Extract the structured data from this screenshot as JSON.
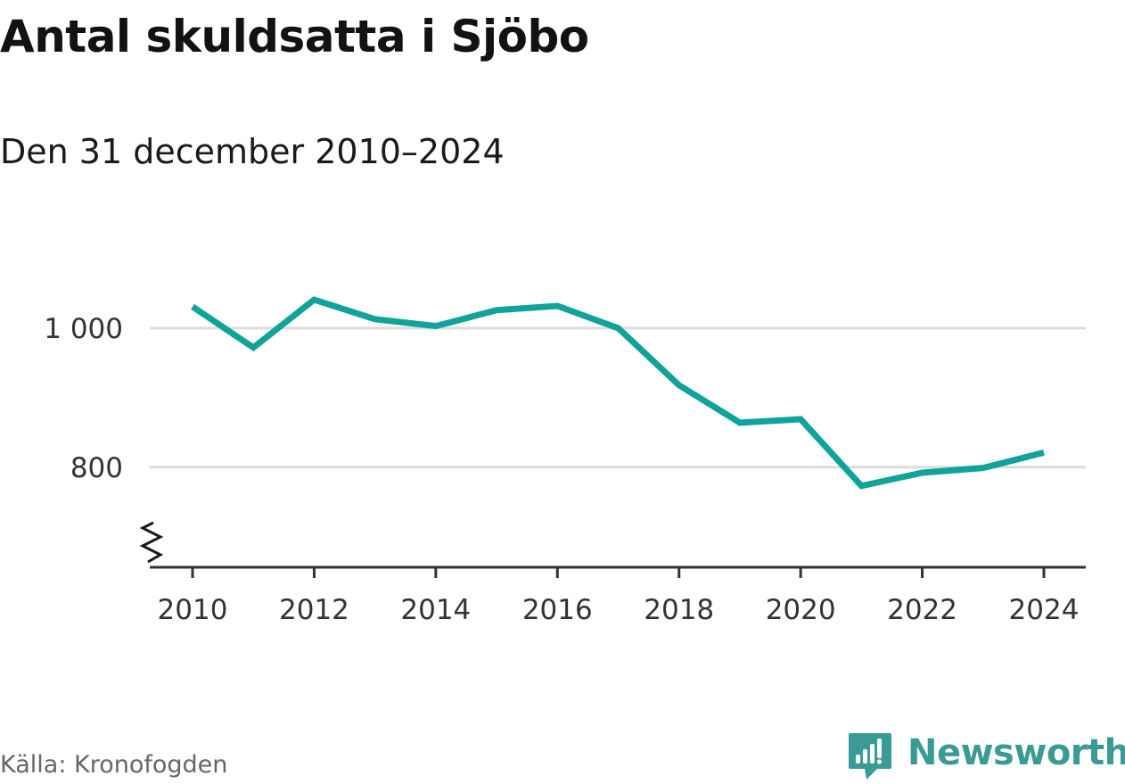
{
  "title": "Antal skuldsatta i Sjöbo",
  "subtitle": "Den 31 december 2010–2024",
  "source": "Källa: Kronofogden",
  "brand": {
    "name": "Newsworthy",
    "logo_icon": "bar-chart-speech-bubble-icon"
  },
  "colors": {
    "line": "#0fa39a",
    "grid": "#dddddd",
    "axis": "#333333",
    "brand": "#3a9b96"
  },
  "chart_data": {
    "type": "line",
    "x": [
      2010,
      2011,
      2012,
      2013,
      2014,
      2015,
      2016,
      2017,
      2018,
      2019,
      2020,
      2021,
      2022,
      2023,
      2024
    ],
    "series": [
      {
        "values": [
          1031,
          972,
          1041,
          1013,
          1003,
          1026,
          1032,
          1000,
          918,
          864,
          869,
          773,
          792,
          799,
          821
        ]
      }
    ],
    "x_ticks": [
      2010,
      2012,
      2014,
      2016,
      2018,
      2020,
      2022,
      2024
    ],
    "y_ticks": [
      800,
      1000
    ],
    "y_tick_labels": [
      "800",
      "1 000"
    ],
    "ylim": [
      656,
      1100
    ],
    "y_axis_break": true,
    "grid": true,
    "legend": "none"
  }
}
